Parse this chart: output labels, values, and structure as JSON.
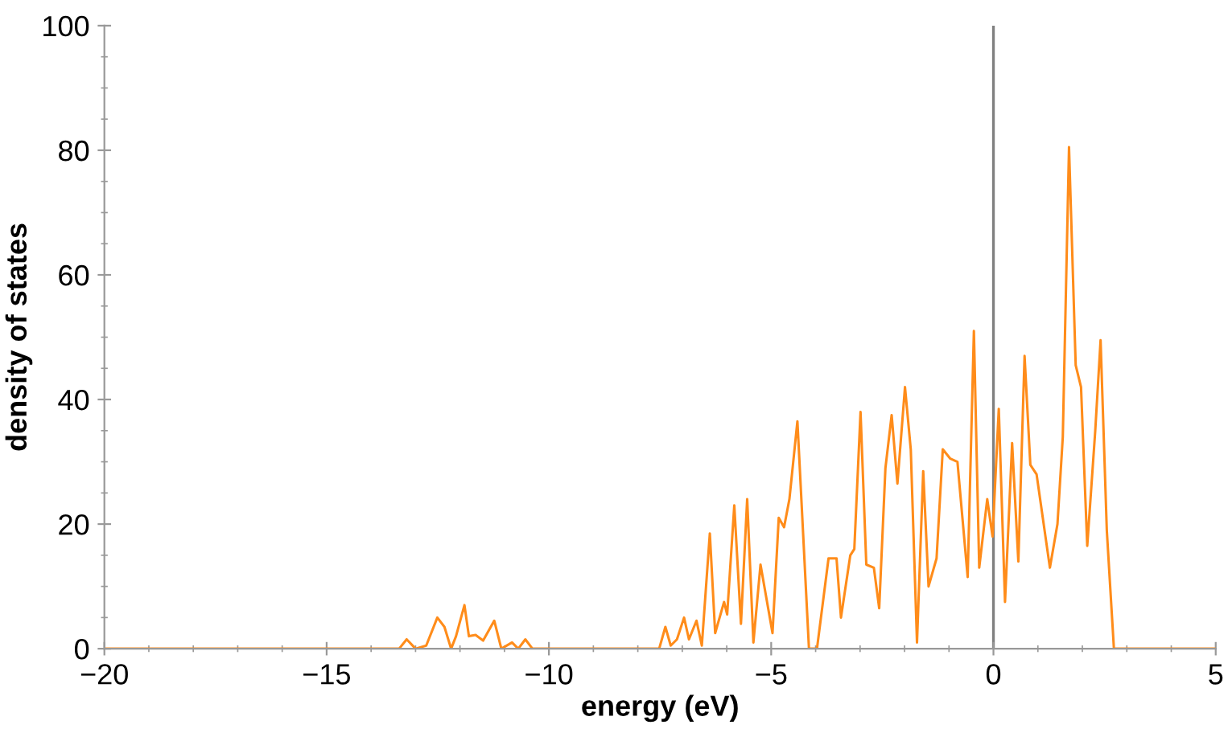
{
  "chart_data": {
    "type": "line",
    "xlabel": "energy (eV)",
    "ylabel": "density of states",
    "xlim": [
      -20,
      5
    ],
    "ylim": [
      0,
      100
    ],
    "xticks": [
      -20,
      -15,
      -10,
      -5,
      0,
      5
    ],
    "yticks": [
      0,
      20,
      40,
      60,
      80,
      100
    ],
    "grid": false,
    "marker": "none",
    "line_style": "solid",
    "ref_lines": [
      {
        "axis": "x",
        "value": 0,
        "color": "#808080"
      }
    ],
    "series": [
      {
        "color": "#ff8c1a",
        "x": [
          -20,
          -13.37,
          -13.2,
          -13.0,
          -12.76,
          -12.51,
          -12.35,
          -12.2,
          -12.09,
          -11.9,
          -11.8,
          -11.65,
          -11.48,
          -11.23,
          -11.07,
          -10.83,
          -10.69,
          -10.53,
          -10.37,
          -7.52,
          -7.38,
          -7.26,
          -7.12,
          -6.96,
          -6.85,
          -6.68,
          -6.56,
          -6.38,
          -6.26,
          -6.06,
          -5.99,
          -5.83,
          -5.68,
          -5.54,
          -5.4,
          -5.24,
          -4.97,
          -4.83,
          -4.71,
          -4.59,
          -4.41,
          -4.15,
          -3.97,
          -3.71,
          -3.53,
          -3.43,
          -3.22,
          -3.13,
          -2.99,
          -2.86,
          -2.69,
          -2.57,
          -2.43,
          -2.29,
          -2.16,
          -1.99,
          -1.86,
          -1.72,
          -1.58,
          -1.46,
          -1.28,
          -1.14,
          -0.97,
          -0.81,
          -0.58,
          -0.44,
          -0.32,
          -0.14,
          -0.02,
          0.12,
          0.26,
          0.42,
          0.56,
          0.7,
          0.83,
          0.97,
          1.27,
          1.44,
          1.56,
          1.7,
          1.85,
          1.97,
          2.11,
          2.29,
          2.41,
          2.55,
          2.71,
          5
        ],
        "values": [
          0,
          0,
          1.5,
          0,
          0.5,
          5,
          3.5,
          0,
          2,
          7,
          2,
          2.2,
          1.3,
          4.5,
          0,
          1,
          0,
          1.5,
          0,
          0,
          3.5,
          0.5,
          1.5,
          5,
          1.5,
          4.5,
          0.5,
          18.5,
          2.5,
          7.5,
          5.5,
          23,
          4,
          24,
          1,
          13.5,
          2.5,
          21,
          19.5,
          24,
          36.5,
          0,
          0,
          14.5,
          14.5,
          5,
          15,
          16,
          38,
          13.5,
          13,
          6.5,
          29,
          37.5,
          26.5,
          42,
          32,
          1,
          28.5,
          10,
          14.5,
          32,
          30.5,
          30,
          11.5,
          51,
          13,
          24,
          18,
          38.5,
          7.5,
          33,
          14,
          47,
          29.5,
          28,
          13,
          20,
          34,
          80.5,
          45.5,
          42,
          16.5,
          35,
          49.5,
          19,
          0,
          0
        ]
      }
    ]
  }
}
